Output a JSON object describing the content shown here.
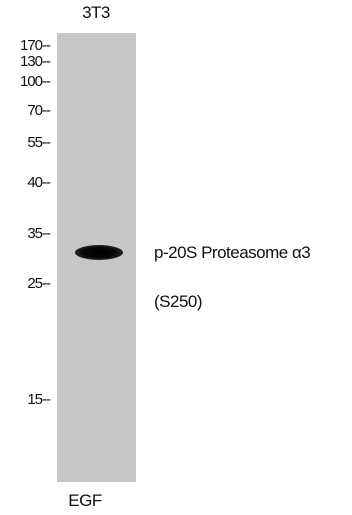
{
  "lane_label": "3T3",
  "markers": [
    "170",
    "130",
    "100",
    "70",
    "55",
    "40",
    "35",
    "25",
    "15"
  ],
  "protein_label_line1": "p-20S Proteasome α3",
  "protein_label_line2": "(S250)",
  "treatment_label": "EGF",
  "colors": {
    "membrane": "#c6c6c6",
    "band": "#000000"
  }
}
